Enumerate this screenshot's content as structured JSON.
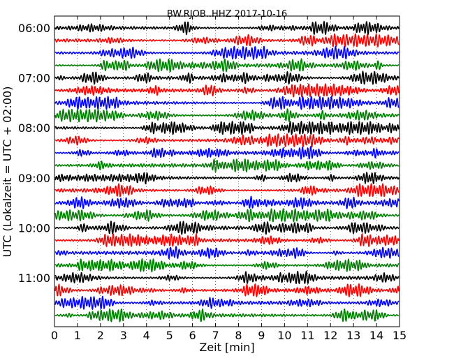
{
  "chart_data": {
    "type": "line",
    "title": "BW.RJOB..HHZ 2017-10-16",
    "xlabel": "Zeit  [min]",
    "ylabel": "UTC (Lokalzeit = UTC + 02:00)",
    "xlim": [
      0,
      15
    ],
    "x_ticks": [
      0,
      1,
      2,
      3,
      4,
      5,
      6,
      7,
      8,
      9,
      10,
      11,
      12,
      13,
      14,
      15
    ],
    "x_tick_labels": [
      "0",
      "1",
      "2",
      "3",
      "4",
      "5",
      "6",
      "7",
      "8",
      "9",
      "10",
      "11",
      "12",
      "13",
      "14",
      "15"
    ],
    "rows_minutes_per_trace": 15,
    "trace_count": 24,
    "first_trace": "06:00",
    "color_cycle": [
      "#000000",
      "#ff0000",
      "#0000ff",
      "#008000"
    ],
    "y_ticks": [
      {
        "label": "06:00",
        "trace_index": 0
      },
      {
        "label": "07:00",
        "trace_index": 4
      },
      {
        "label": "08:00",
        "trace_index": 8
      },
      {
        "label": "09:00",
        "trace_index": 12
      },
      {
        "label": "10:00",
        "trace_index": 16
      },
      {
        "label": "11:00",
        "trace_index": 20
      }
    ],
    "grid": "dotted"
  }
}
